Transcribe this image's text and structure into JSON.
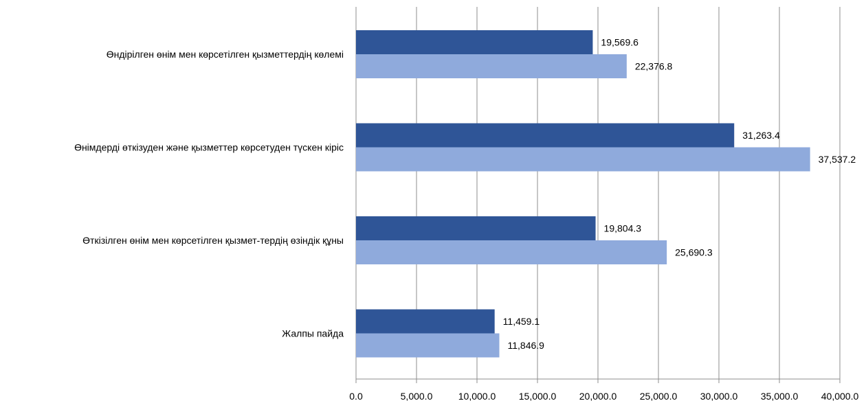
{
  "chart_data": {
    "type": "bar",
    "orientation": "horizontal",
    "categories": [
      "Өндірілген өнім мен көрсетілген қызметтердің көлемі",
      "Өнімдерді  өткізуден және қызметтер көрсетуден түскен кіріс",
      "Өткізілген өнім мен көрсетілген қызмет-тердің өзіндік құны",
      "Жалпы пайда"
    ],
    "series": [
      {
        "values": [
          19569.6,
          31263.4,
          19804.3,
          11459.1
        ],
        "color": "#2f5597"
      },
      {
        "values": [
          22376.8,
          37537.2,
          25690.3,
          11846.9
        ],
        "color": "#8faadc"
      }
    ],
    "data_labels": [
      [
        "19,569.6",
        "31,263.4",
        "19,804.3",
        "11,459.1"
      ],
      [
        "22,376.8",
        "37,537.2",
        "25,690.3",
        "11,846.9"
      ]
    ],
    "xlim": [
      0,
      40000
    ],
    "x_ticks": [
      0,
      5000,
      10000,
      15000,
      20000,
      25000,
      30000,
      35000,
      40000
    ],
    "x_tick_labels": [
      "0.0",
      "5,000.0",
      "10,000.0",
      "15,000.0",
      "20,000.0",
      "25,000.0",
      "30,000.0",
      "35,000.0",
      "40,000.0"
    ],
    "grid": true,
    "legend": "none",
    "title": "",
    "xlabel": "",
    "ylabel": ""
  }
}
